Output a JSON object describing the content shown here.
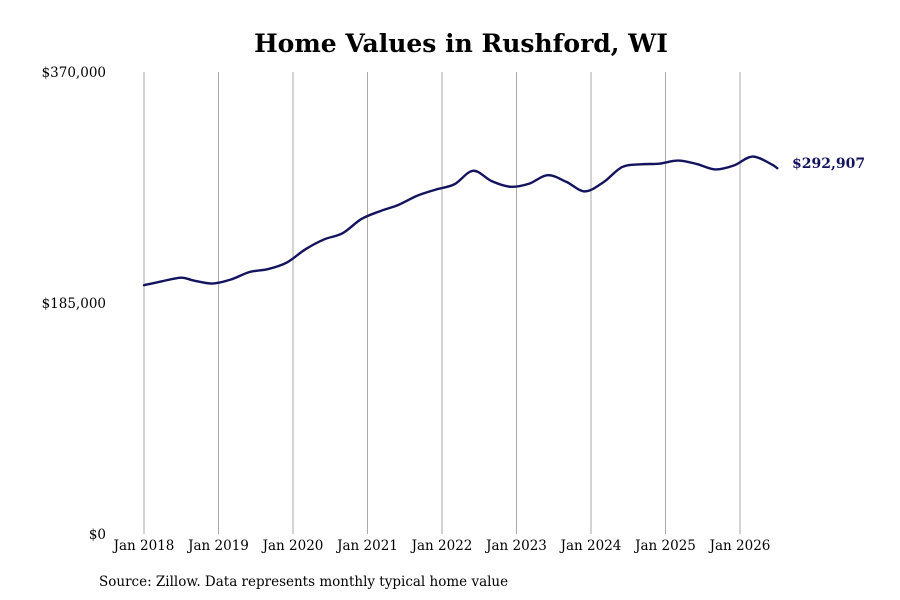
{
  "chart_data": {
    "type": "line",
    "title": "Home Values in Rushford, WI",
    "source": "Source: Zillow. Data represents monthly typical home value",
    "ylim": [
      0,
      370000
    ],
    "y_ticks": [
      {
        "value": 0,
        "label": "$0"
      },
      {
        "value": 185000,
        "label": "$185,000"
      },
      {
        "value": 370000,
        "label": "$370,000"
      }
    ],
    "x_ticks": [
      {
        "value": "2018-01",
        "label": "Jan 2018"
      },
      {
        "value": "2019-01",
        "label": "Jan 2019"
      },
      {
        "value": "2020-01",
        "label": "Jan 2020"
      },
      {
        "value": "2021-01",
        "label": "Jan 2021"
      },
      {
        "value": "2022-01",
        "label": "Jan 2022"
      },
      {
        "value": "2023-01",
        "label": "Jan 2023"
      },
      {
        "value": "2024-01",
        "label": "Jan 2024"
      },
      {
        "value": "2025-01",
        "label": "Jan 2025"
      },
      {
        "value": "2026-01",
        "label": "Jan 2026"
      }
    ],
    "grid": "vertical",
    "line_color": "#13135e",
    "end_label": "$292,907",
    "series": [
      {
        "x": [
          "2018-01",
          "2018-04",
          "2018-07",
          "2018-09",
          "2018-12",
          "2019-03",
          "2019-06",
          "2019-09",
          "2019-12",
          "2020-03",
          "2020-06",
          "2020-09",
          "2020-12",
          "2021-03",
          "2021-06",
          "2021-09",
          "2021-12",
          "2022-03",
          "2022-06",
          "2022-09",
          "2022-12",
          "2023-03",
          "2023-06",
          "2023-09",
          "2023-12",
          "2024-03",
          "2024-06",
          "2024-09",
          "2024-12",
          "2025-03",
          "2025-06",
          "2025-09",
          "2025-12",
          "2026-03",
          "2026-06",
          "2026-07"
        ],
        "values": [
          199300,
          202500,
          205300,
          203000,
          200600,
          203800,
          209800,
          212200,
          217400,
          228000,
          235900,
          240900,
          252200,
          258500,
          263600,
          270900,
          275800,
          280100,
          290900,
          282600,
          278100,
          280500,
          287400,
          282100,
          274400,
          281700,
          293900,
          296100,
          296600,
          299100,
          296400,
          292000,
          295100,
          302300,
          296300,
          292907
        ]
      }
    ]
  }
}
